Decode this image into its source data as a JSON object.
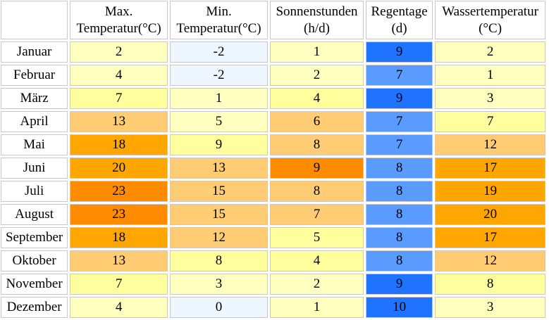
{
  "headers": [
    {
      "line1": "Max.",
      "line2": "Temperatur(°C)"
    },
    {
      "line1": "Min.",
      "line2": "Temperatur(°C)"
    },
    {
      "line1": "Sonnenstunden",
      "line2": "(h/d)"
    },
    {
      "line1": "Regentage",
      "line2": "(d)"
    },
    {
      "line1": "Wassertemperatur",
      "line2": "(°C)"
    }
  ],
  "rows": [
    {
      "month": "Januar",
      "values": [
        "2",
        "-2",
        "1",
        "9",
        "2"
      ],
      "colors": [
        "#ffffc0",
        "#eef6ff",
        "#ffffc0",
        "#1f73ff",
        "#ffffc0"
      ]
    },
    {
      "month": "Februar",
      "values": [
        "4",
        "-2",
        "2",
        "7",
        "1"
      ],
      "colors": [
        "#ffffc0",
        "#eef6ff",
        "#ffffc0",
        "#5a9bff",
        "#ffffc0"
      ]
    },
    {
      "month": "März",
      "values": [
        "7",
        "1",
        "4",
        "9",
        "3"
      ],
      "colors": [
        "#ffff9e",
        "#ffffc0",
        "#ffff9e",
        "#1f73ff",
        "#ffffc0"
      ]
    },
    {
      "month": "April",
      "values": [
        "13",
        "5",
        "6",
        "7",
        "7"
      ],
      "colors": [
        "#ffcc73",
        "#ffffc0",
        "#ffcc73",
        "#5a9bff",
        "#ffff9e"
      ]
    },
    {
      "month": "Mai",
      "values": [
        "18",
        "9",
        "8",
        "7",
        "12"
      ],
      "colors": [
        "#ffa600",
        "#ffff9e",
        "#ffcc73",
        "#5a9bff",
        "#ffcc73"
      ]
    },
    {
      "month": "Juni",
      "values": [
        "20",
        "13",
        "9",
        "8",
        "17"
      ],
      "colors": [
        "#ffa600",
        "#ffcc73",
        "#ff8c00",
        "#5a9bff",
        "#ffa600"
      ]
    },
    {
      "month": "Juli",
      "values": [
        "23",
        "15",
        "8",
        "8",
        "19"
      ],
      "colors": [
        "#ff8c00",
        "#ffcc73",
        "#ffcc73",
        "#5a9bff",
        "#ffa600"
      ]
    },
    {
      "month": "August",
      "values": [
        "23",
        "15",
        "7",
        "8",
        "20"
      ],
      "colors": [
        "#ff8c00",
        "#ffcc73",
        "#ffcc73",
        "#5a9bff",
        "#ffa600"
      ]
    },
    {
      "month": "September",
      "values": [
        "18",
        "12",
        "5",
        "8",
        "17"
      ],
      "colors": [
        "#ffa600",
        "#ffcc73",
        "#ffff9e",
        "#5a9bff",
        "#ffa600"
      ]
    },
    {
      "month": "Oktober",
      "values": [
        "13",
        "8",
        "4",
        "8",
        "12"
      ],
      "colors": [
        "#ffcc73",
        "#ffff9e",
        "#ffff9e",
        "#5a9bff",
        "#ffcc73"
      ]
    },
    {
      "month": "November",
      "values": [
        "7",
        "3",
        "2",
        "9",
        "8"
      ],
      "colors": [
        "#ffff9e",
        "#ffffc0",
        "#ffffc0",
        "#1f73ff",
        "#ffff9e"
      ]
    },
    {
      "month": "Dezember",
      "values": [
        "4",
        "0",
        "1",
        "10",
        "3"
      ],
      "colors": [
        "#ffffc0",
        "#eef6ff",
        "#ffffc0",
        "#1f73ff",
        "#ffffc0"
      ]
    }
  ]
}
